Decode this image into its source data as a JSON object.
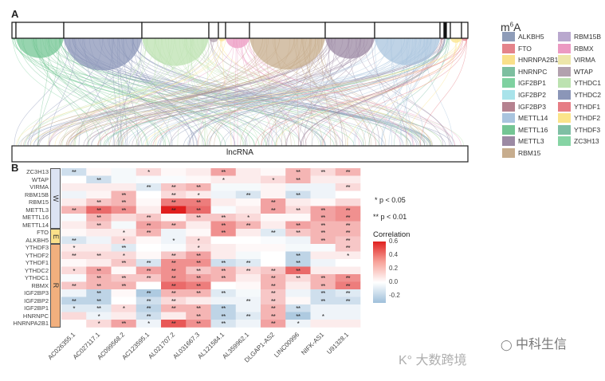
{
  "chart_data": [
    {
      "panel": "A",
      "type": "diagram",
      "bottom_label": "lncRNA",
      "legend_title_prefix": "m",
      "legend_title_sup": "6",
      "legend_title_suffix": "A",
      "legend": [
        {
          "name": "ALKBH5",
          "color": "#8E9CB8"
        },
        {
          "name": "FTO",
          "color": "#E4838A"
        },
        {
          "name": "HNRNPA2B1",
          "color": "#F9E08A"
        },
        {
          "name": "HNRNPC",
          "color": "#7DBFA0"
        },
        {
          "name": "IGF2BP1",
          "color": "#7FD1A0"
        },
        {
          "name": "IGF2BP2",
          "color": "#A9E3EA"
        },
        {
          "name": "IGF2BP3",
          "color": "#B58290"
        },
        {
          "name": "METTL14",
          "color": "#A9C4DE"
        },
        {
          "name": "METTL16",
          "color": "#74C594"
        },
        {
          "name": "METTL3",
          "color": "#9C8AA4"
        },
        {
          "name": "RBM15",
          "color": "#C7AD8E"
        },
        {
          "name": "RBM15B",
          "color": "#B9A8CE"
        },
        {
          "name": "RBMX",
          "color": "#EC9AC2"
        },
        {
          "name": "VIRMA",
          "color": "#EDE6AA"
        },
        {
          "name": "WTAP",
          "color": "#B2A1AE"
        },
        {
          "name": "YTHDC1",
          "color": "#BCE2B0"
        },
        {
          "name": "YTHDC2",
          "color": "#8B96B8"
        },
        {
          "name": "YTHDF1",
          "color": "#E67D85"
        },
        {
          "name": "YTHDF2",
          "color": "#FBE48A"
        },
        {
          "name": "YTHDF3",
          "color": "#7FBFA4"
        },
        {
          "name": "ZC3H13",
          "color": "#86D4A4"
        }
      ]
    },
    {
      "panel": "B",
      "type": "heatmap",
      "columns": [
        "AC026355.1",
        "AC027117.1",
        "AC099568.2",
        "AC123595.1",
        "AL021707.2",
        "AL031667.3",
        "AL121584.1",
        "AL359962.1",
        "DLGAP1-AS2",
        "LINC00996",
        "NIFK-AS1",
        "U91328.1"
      ],
      "rows": [
        "ZC3H13",
        "WTAP",
        "VIRMA",
        "RBM15B",
        "RBM15",
        "METTL3",
        "METTL16",
        "METTL14",
        "FTO",
        "ALKBH5",
        "YTHDF3",
        "YTHDF2",
        "YTHDF1",
        "YTHDC2",
        "YTHDC1",
        "RBMX",
        "IGF2BP3",
        "IGF2BP2",
        "IGF2BP1",
        "HNRNPC",
        "HNRNPA2B1"
      ],
      "groups": [
        {
          "label": "W",
          "rows": 8,
          "color": "#DCE3F3"
        },
        {
          "label": "E",
          "rows": 2,
          "color": "#FBE08A"
        },
        {
          "label": "R",
          "rows": 11,
          "color": "#F2B07E"
        }
      ],
      "values": [
        [
          -0.15,
          0.02,
          -0.03,
          0.1,
          0.02,
          0.05,
          0.25,
          0.05,
          0.02,
          0.2,
          0.1,
          0.2
        ],
        [
          0.0,
          -0.15,
          -0.03,
          -0.02,
          -0.02,
          0.02,
          0.05,
          0.05,
          0.1,
          0.2,
          0.05,
          0.05
        ],
        [
          0.05,
          0.05,
          0.05,
          -0.1,
          0.15,
          0.2,
          -0.03,
          -0.03,
          0.03,
          -0.05,
          -0.05,
          0.1
        ],
        [
          -0.05,
          0.03,
          0.2,
          0.0,
          0.1,
          0.05,
          -0.05,
          -0.12,
          0.03,
          -0.15,
          -0.05,
          0.0
        ],
        [
          0.05,
          0.15,
          0.2,
          0.02,
          0.35,
          0.35,
          0.05,
          0.02,
          0.25,
          0.05,
          0.02,
          0.1
        ],
        [
          0.2,
          0.4,
          0.3,
          0.05,
          0.6,
          0.4,
          -0.02,
          0.05,
          0.25,
          0.1,
          0.25,
          0.3
        ],
        [
          -0.02,
          0.2,
          0.1,
          0.15,
          0.02,
          0.15,
          0.15,
          0.1,
          0.02,
          0.02,
          0.25,
          0.3
        ],
        [
          0.05,
          0.15,
          -0.03,
          0.25,
          0.2,
          0.05,
          0.3,
          0.2,
          0.05,
          0.25,
          0.2,
          0.2
        ],
        [
          0.02,
          0.05,
          0.05,
          0.2,
          -0.05,
          0.02,
          0.3,
          0.05,
          -0.1,
          0.15,
          0.2,
          0.2
        ],
        [
          -0.12,
          -0.05,
          0.1,
          0.02,
          -0.05,
          0.1,
          0.0,
          0.0,
          -0.02,
          -0.05,
          0.2,
          0.15
        ],
        [
          0.05,
          0.05,
          -0.1,
          0.0,
          -0.02,
          0.08,
          0.05,
          0.02,
          0.02,
          -0.03,
          -0.02,
          0.15
        ],
        [
          0.1,
          0.1,
          0.1,
          0.02,
          0.15,
          0.25,
          0.05,
          -0.03,
          0.0,
          -0.2,
          0.05,
          0.05
        ],
        [
          0.02,
          0.05,
          0.15,
          -0.12,
          0.3,
          0.3,
          -0.15,
          -0.1,
          0.0,
          -0.2,
          -0.05,
          0.0
        ],
        [
          0.1,
          0.25,
          0.02,
          0.25,
          0.3,
          0.15,
          0.2,
          0.1,
          0.15,
          0.4,
          0.05,
          0.05
        ],
        [
          -0.02,
          0.2,
          0.15,
          0.15,
          0.3,
          0.25,
          0.2,
          0.05,
          0.2,
          0.1,
          0.2,
          0.3
        ],
        [
          0.15,
          0.2,
          0.2,
          0.0,
          0.4,
          0.35,
          0.0,
          0.02,
          0.2,
          0.05,
          0.2,
          0.35
        ],
        [
          -0.05,
          -0.2,
          0.02,
          -0.25,
          0.2,
          0.2,
          -0.1,
          -0.03,
          0.15,
          -0.05,
          -0.15,
          -0.1
        ],
        [
          -0.2,
          -0.2,
          0.0,
          -0.15,
          0.1,
          0.05,
          -0.05,
          -0.05,
          0.15,
          0.02,
          -0.15,
          -0.15
        ],
        [
          -0.1,
          -0.1,
          0.1,
          -0.2,
          0.2,
          0.2,
          -0.2,
          -0.05,
          0.2,
          -0.15,
          -0.05,
          -0.05
        ],
        [
          0.1,
          -0.05,
          0.05,
          -0.15,
          0.05,
          0.2,
          -0.2,
          -0.1,
          0.2,
          -0.25,
          -0.05,
          -0.05
        ],
        [
          0.0,
          0.1,
          0.25,
          -0.05,
          0.45,
          0.3,
          -0.12,
          -0.05,
          0.25,
          -0.05,
          0.05,
          0.05
        ]
      ],
      "significance": [
        [
          "**",
          "",
          "",
          "*",
          "",
          "",
          "**",
          "",
          "",
          "**",
          "**",
          "**"
        ],
        [
          "",
          "**",
          "",
          "",
          "",
          "",
          "*",
          "",
          "*",
          "**",
          "",
          ""
        ],
        [
          "",
          "",
          "",
          "**",
          "**",
          "**",
          "",
          "",
          "",
          "",
          "",
          "**"
        ],
        [
          "",
          "",
          "**",
          "",
          "**",
          "*",
          "",
          "**",
          "",
          "**",
          "",
          ""
        ],
        [
          "",
          "**",
          "**",
          "",
          "**",
          "**",
          "",
          "",
          "**",
          "",
          "",
          ""
        ],
        [
          "**",
          "**",
          "**",
          "",
          "**",
          "**",
          "",
          "",
          "**",
          "**",
          "**",
          "**"
        ],
        [
          "",
          "**",
          "",
          "**",
          "",
          "**",
          "**",
          "*",
          "",
          "",
          "**",
          "**"
        ],
        [
          "",
          "**",
          "",
          "**",
          "**",
          "",
          "**",
          "**",
          "",
          "**",
          "**",
          "**"
        ],
        [
          "",
          "",
          "*",
          "**",
          "",
          "",
          "**",
          "",
          "**",
          "**",
          "**",
          "**"
        ],
        [
          "**",
          "",
          "*",
          "",
          "*",
          "*",
          "",
          "",
          "",
          "",
          "**",
          "**"
        ],
        [
          "*",
          "",
          "**",
          "",
          "",
          "*",
          "",
          "",
          "",
          "",
          "",
          "**"
        ],
        [
          "**",
          "**",
          "*",
          "",
          "**",
          "**",
          "",
          "",
          "",
          "**",
          "",
          "*"
        ],
        [
          "",
          "",
          "**",
          "**",
          "**",
          "**",
          "**",
          "**",
          "",
          "**",
          "",
          ""
        ],
        [
          "*",
          "**",
          "",
          "**",
          "**",
          "**",
          "**",
          "**",
          "**",
          "**",
          "",
          ""
        ],
        [
          "",
          "**",
          "**",
          "**",
          "**",
          "**",
          "**",
          "",
          "**",
          "**",
          "**",
          "**"
        ],
        [
          "**",
          "**",
          "**",
          "",
          "**",
          "**",
          "",
          "",
          "**",
          "",
          "**",
          "**"
        ],
        [
          "",
          "**",
          "",
          "**",
          "**",
          "**",
          "**",
          "",
          "**",
          "",
          "**",
          "**"
        ],
        [
          "**",
          "**",
          "",
          "**",
          "**",
          "",
          "",
          "**",
          "**",
          "",
          "**",
          "**"
        ],
        [
          "*",
          "**",
          "*",
          "**",
          "**",
          "**",
          "**",
          "",
          "**",
          "**",
          "",
          ""
        ],
        [
          "",
          "*",
          "",
          "**",
          "",
          "**",
          "**",
          "**",
          "**",
          "**",
          "*",
          ""
        ],
        [
          "",
          "*",
          "**",
          "*",
          "**",
          "**",
          "**",
          "",
          "**",
          "*",
          "",
          ""
        ]
      ],
      "sig_legend": [
        "* p < 0.05",
        "** p < 0.01"
      ],
      "colorbar": {
        "title": "Correlation",
        "ticks": [
          "0.6",
          "0.4",
          "0.2",
          "0.0",
          "-0.2"
        ],
        "range": [
          -0.3,
          0.6
        ],
        "low_color": "#9EBFDA",
        "mid_color": "#FFFFFF",
        "high_color": "#E0201F"
      }
    }
  ],
  "labels": {
    "panel_a": "A",
    "panel_b": "B"
  },
  "watermarks": {
    "right": "中科生信",
    "left": "大数跨境"
  }
}
